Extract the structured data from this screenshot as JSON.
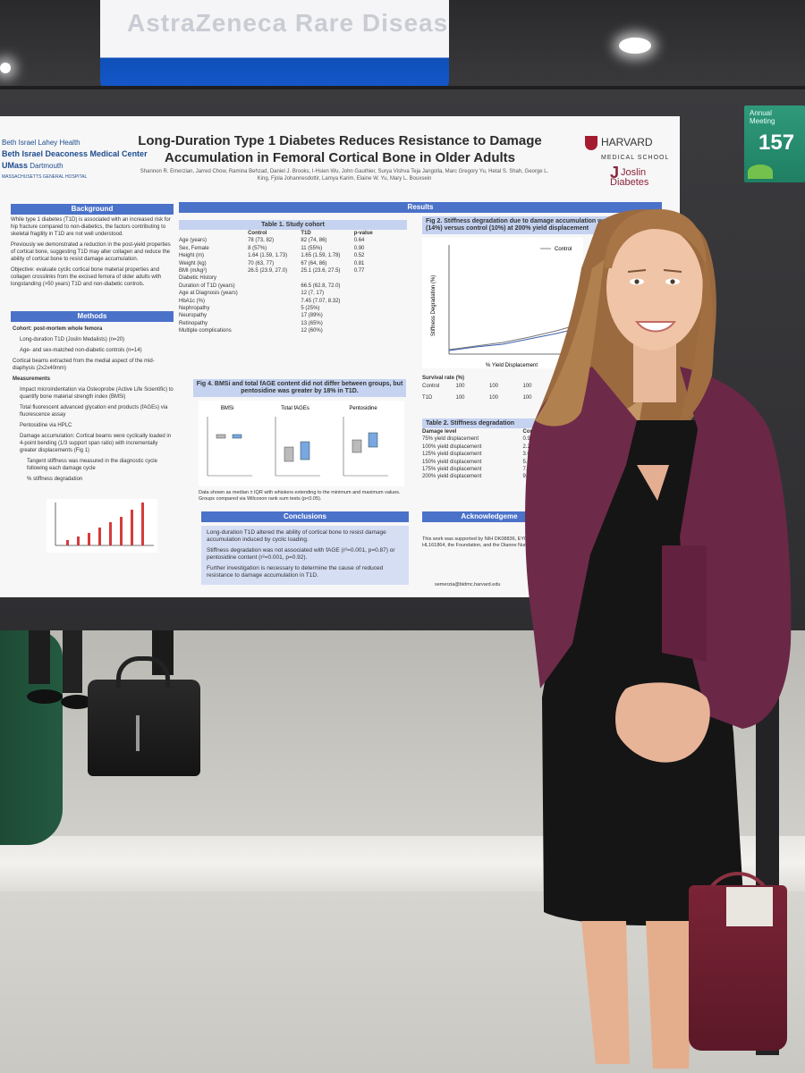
{
  "scene": {
    "banner_text": "AstraZeneca Rare Disease",
    "board_label": "Annual Meeting",
    "board_number": "157"
  },
  "poster": {
    "title_line1": "Long-Duration Type 1 Diabetes Reduces Resistance to Damage",
    "title_line2": "Accumulation in Femoral Cortical Bone in Older Adults",
    "authors": "Shannon R. Emerzian, Jarred Chow, Ramina Behzad, Daniel J. Brooks, I-Hsien Wu, John Gauthier, Surya Vishva Teja Jangolla, Marc Gregory Yu, Hetal S. Shah, George L. King, Fjola Johannesdottir, Lamya Karim, Elaine W. Yu, Mary L. Bouxsein",
    "logo_bidmc_1": "Beth Israel Lahey Health",
    "logo_bidmc_2": "Beth Israel Deaconess Medical Center",
    "logo_umass_1": "UMass",
    "logo_umass_2": "Dartmouth",
    "logo_mgh": "MASSACHUSETTS GENERAL HOSPITAL",
    "logo_harvard_1": "HARVARD",
    "logo_harvard_2": "MEDICAL SCHOOL",
    "logo_joslin_j": "J",
    "logo_joslin_1": "Joslin",
    "logo_joslin_2": "Diabetes",
    "sections": {
      "background": "Background",
      "methods": "Methods",
      "results": "Results",
      "conclusions": "Conclusions",
      "acknowledgements": "Acknowledgeme"
    },
    "background_text": [
      "While type 1 diabetes (T1D) is associated with an increased risk for hip fracture compared to non-diabetics, the factors contributing to skeletal fragility in T1D are not well understood.",
      "Previously we demonstrated a reduction in the post-yield properties of cortical bone, suggesting T1D may alter collagen and reduce the ability of cortical bone to resist damage accumulation.",
      "Objective: evaluate cyclic cortical bone material properties and collagen crosslinks from the excised femora of older adults with longstanding (>50 years) T1D and non-diabetic controls."
    ],
    "methods_text": [
      "Cohort: post-mortem whole femora",
      "Long-duration T1D (Joslin Medalists) (n=20)",
      "Age- and sex-matched non-diabetic controls (n=14)",
      "Cortical beams extracted from the medial aspect of the mid-diaphysis (2x2x40mm)",
      "Measurements",
      "Impact microindentation via Osteoprobe (Active Life Scientific) to quantify bone material strength index (BMSi)",
      "Total fluorescent advanced glycation end products (fAGEs) via fluorescence assay",
      "Pentosidine via HPLC",
      "Damage accumulation: Cortical beams were cyclically loaded in 4-point bending (1/3 support span ratio) with incrementally greater displacements (Fig 1)",
      "Tangent stiffness was measured in the diagnostic cycle following each damage cycle",
      "% stiffness degradation"
    ],
    "table1": {
      "caption": "Table 1. Study cohort",
      "headers": [
        "",
        "Control",
        "T1D",
        "p-value"
      ],
      "rows": [
        [
          "Age (years)",
          "78 (73, 82)",
          "82 (74, 86)",
          "0.64"
        ],
        [
          "Sex, Female",
          "8 (57%)",
          "11 (55%)",
          "0.90"
        ],
        [
          "Height (m)",
          "1.64 (1.59, 1.73)",
          "1.65 (1.59, 1.78)",
          "0.52"
        ],
        [
          "Weight (kg)",
          "70 (63, 77)",
          "67 (64, 86)",
          "0.81"
        ],
        [
          "BMI (m/kg²)",
          "26.5 (23.9, 27.0)",
          "25.1 (23.6, 27.5)",
          "0.77"
        ],
        [
          "Diabetic History",
          "",
          "",
          ""
        ],
        [
          "Duration of T1D (years)",
          "",
          "66.5 (62.8, 72.0)",
          ""
        ],
        [
          "Age at Diagnosis (years)",
          "",
          "12 (7, 17)",
          ""
        ],
        [
          "HbA1c (%)",
          "",
          "7.45 (7.07, 8.32)",
          ""
        ],
        [
          "Nephropathy",
          "",
          "5 (25%)",
          ""
        ],
        [
          "Neuropathy",
          "",
          "17 (89%)",
          ""
        ],
        [
          "Retinopathy",
          "",
          "13 (65%)",
          ""
        ],
        [
          "Multiple complications",
          "",
          "12 (60%)",
          ""
        ]
      ]
    },
    "fig2_title": "Fig 2. Stiffness degradation due to damage accumulation was greater in T1D (14%) versus control (10%) at 200% yield displacement",
    "fig2_legend_control": "Control",
    "fig2_ylabel": "Stiffness Degradation (%)",
    "fig2_xlabel": "% Yield Displacement",
    "fig4_title": "Fig 4. BMSi and total fAGE content did not differ between groups, but pentosidine was greater by 18% in T1D.",
    "fig4_panels": [
      "BMSi",
      "Total fAGEs",
      "Pentosidine"
    ],
    "fig4_caption": "Data shown as median ± IQR with whiskers extending to the minimum and maximum values. Groups compared via Wilcoxon rank sum tests (p<0.05).",
    "survival": {
      "header": "Survival rate (%)",
      "rows": [
        [
          "Control",
          "100",
          "100",
          "100"
        ],
        [
          "T1D",
          "100",
          "100",
          "100"
        ]
      ]
    },
    "table2": {
      "caption": "Table 2. Stiffness degradation",
      "headers": [
        "Damage level",
        "Contr"
      ],
      "rows": [
        [
          "75% yield displacement",
          "0.9 (0.4"
        ],
        [
          "100% yield displacement",
          "2.2 (1.5"
        ],
        [
          "125% yield displacement",
          "3.0 (4.2"
        ],
        [
          "150% yield displacement",
          "5.0 (4.2"
        ],
        [
          "175% yield displacement",
          "7.2 (5.9"
        ],
        [
          "200% yield displacement",
          "9.7 (7.6"
        ]
      ]
    },
    "conclusions_text": [
      "Long-duration T1D altered the ability of cortical bone to resist damage accumulation induced by cyclic loading.",
      "Stiffness degradation was not associated with fAGE (r²=0.001, p=0.87) or pentosidine content (r²=0.001, p=0.92).",
      "Further investigation is necessary to determine the cause of reduced resistance to damage accumulation in T1D."
    ],
    "ack_text": "This work was supported by NIH DK08836, EY026080, HL161864, the Foundation, and the Dianne Nunnally Ho",
    "contact": "semerzia@bidmc.harvard.edu"
  },
  "colors": {
    "section_header": "#4b72c9",
    "table_caption": "#c5d3f0",
    "blazer": "#6e2a49",
    "board_number_bg": "#2f9a7a"
  }
}
